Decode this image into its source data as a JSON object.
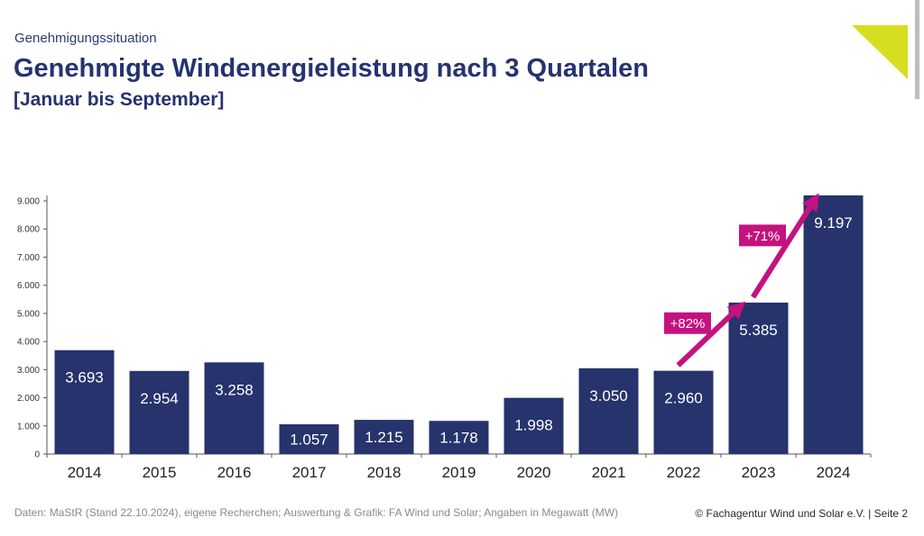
{
  "header": {
    "kicker": "Genehmigungssituation",
    "title": "Genehmigte Windenergieleistung nach 3 Quartalen",
    "subtitle": "[Januar bis September]"
  },
  "footer": {
    "source": "Daten: MaStR (Stand 22.10.2024), eigene Recherchen; Auswertung & Grafik: FA Wind und Solar; Angaben in Megawatt (MW)",
    "copyright": "© Fachagentur Wind und Solar e.V. | Seite 2"
  },
  "colors": {
    "bar": "#27336c",
    "accent": "#c4127f",
    "title": "#25336f",
    "corner": "#d6df1f"
  },
  "chart_data": {
    "type": "bar",
    "categories": [
      "2014",
      "2015",
      "2016",
      "2017",
      "2018",
      "2019",
      "2020",
      "2021",
      "2022",
      "2023",
      "2024"
    ],
    "values": [
      3693,
      2954,
      3258,
      1057,
      1215,
      1178,
      1998,
      3050,
      2960,
      5385,
      9197
    ],
    "value_labels": [
      "3.693",
      "2.954",
      "3.258",
      "1.057",
      "1.215",
      "1.178",
      "1.998",
      "3.050",
      "2.960",
      "5.385",
      "9.197"
    ],
    "ylim": [
      0,
      9000
    ],
    "yticks": [
      0,
      1000,
      2000,
      3000,
      4000,
      5000,
      6000,
      7000,
      8000,
      9000
    ],
    "ytick_labels": [
      "0",
      "1.000",
      "2.000",
      "3.000",
      "4.000",
      "5.000",
      "6.000",
      "7.000",
      "8.000",
      "9.000"
    ],
    "grid": false,
    "annotations": [
      {
        "text": "+82%",
        "from": "2022",
        "to": "2023"
      },
      {
        "text": "+71%",
        "from": "2023",
        "to": "2024"
      }
    ]
  }
}
